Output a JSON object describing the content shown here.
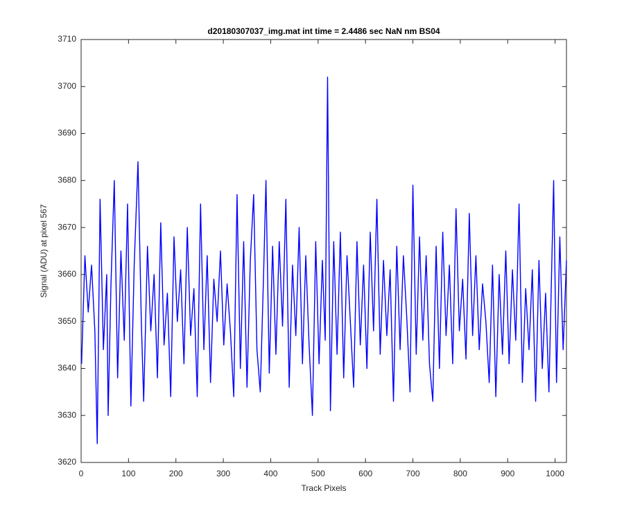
{
  "chart_data": {
    "type": "line",
    "title": "d20180307037_img.mat int time = 2.4486 sec  NaN nm BS04",
    "x_label": "Track Pixels",
    "y_label": "Signal (ADU) at pixel 567",
    "xlim": [
      0,
      1024
    ],
    "ylim": [
      3620,
      3710
    ],
    "xticks": [
      0,
      100,
      200,
      300,
      400,
      500,
      600,
      700,
      800,
      900,
      1000
    ],
    "yticks": [
      3620,
      3630,
      3640,
      3650,
      3660,
      3670,
      3680,
      3690,
      3700,
      3710
    ],
    "series": [
      {
        "color": "#0000ff",
        "x": [
          1,
          8,
          15,
          22,
          29,
          34,
          40,
          47,
          54,
          57,
          63,
          70,
          77,
          84,
          91,
          98,
          105,
          112,
          120,
          127,
          132,
          140,
          147,
          154,
          161,
          168,
          175,
          182,
          189,
          196,
          203,
          210,
          217,
          224,
          231,
          238,
          245,
          252,
          259,
          266,
          273,
          280,
          287,
          294,
          301,
          308,
          315,
          322,
          329,
          336,
          343,
          350,
          357,
          364,
          371,
          378,
          385,
          390,
          397,
          404,
          411,
          418,
          425,
          432,
          439,
          446,
          453,
          460,
          467,
          474,
          481,
          488,
          495,
          502,
          509,
          515,
          520,
          526,
          533,
          540,
          547,
          554,
          561,
          568,
          575,
          582,
          589,
          596,
          603,
          610,
          617,
          624,
          631,
          638,
          645,
          652,
          659,
          666,
          673,
          680,
          687,
          694,
          700,
          707,
          714,
          721,
          728,
          735,
          742,
          749,
          756,
          763,
          770,
          777,
          784,
          791,
          798,
          805,
          812,
          819,
          826,
          833,
          840,
          847,
          854,
          861,
          868,
          875,
          882,
          889,
          896,
          903,
          910,
          917,
          924,
          931,
          938,
          945,
          952,
          959,
          966,
          973,
          980,
          987,
          993,
          997,
          1003,
          1010,
          1017,
          1024
        ],
        "values": [
          3641,
          3664,
          3652,
          3662,
          3648,
          3624,
          3676,
          3644,
          3660,
          3630,
          3658,
          3680,
          3638,
          3665,
          3646,
          3675,
          3632,
          3662,
          3684,
          3650,
          3633,
          3666,
          3648,
          3660,
          3638,
          3671,
          3645,
          3656,
          3634,
          3668,
          3650,
          3661,
          3641,
          3670,
          3647,
          3657,
          3634,
          3675,
          3644,
          3664,
          3637,
          3659,
          3650,
          3665,
          3645,
          3658,
          3648,
          3634,
          3677,
          3640,
          3667,
          3636,
          3663,
          3677,
          3644,
          3635,
          3660,
          3680,
          3639,
          3666,
          3643,
          3667,
          3649,
          3676,
          3636,
          3662,
          3647,
          3670,
          3641,
          3664,
          3645,
          3630,
          3667,
          3641,
          3663,
          3646,
          3702,
          3631,
          3667,
          3643,
          3669,
          3638,
          3664,
          3650,
          3636,
          3667,
          3645,
          3662,
          3640,
          3669,
          3648,
          3676,
          3643,
          3663,
          3647,
          3661,
          3633,
          3666,
          3644,
          3664,
          3651,
          3635,
          3679,
          3643,
          3668,
          3646,
          3664,
          3641,
          3633,
          3666,
          3640,
          3669,
          3647,
          3662,
          3641,
          3674,
          3648,
          3659,
          3642,
          3673,
          3647,
          3664,
          3644,
          3658,
          3650,
          3637,
          3662,
          3634,
          3660,
          3643,
          3665,
          3641,
          3661,
          3646,
          3675,
          3637,
          3657,
          3644,
          3661,
          3633,
          3663,
          3640,
          3656,
          3635,
          3662,
          3680,
          3637,
          3668,
          3644,
          3663
        ]
      }
    ]
  }
}
